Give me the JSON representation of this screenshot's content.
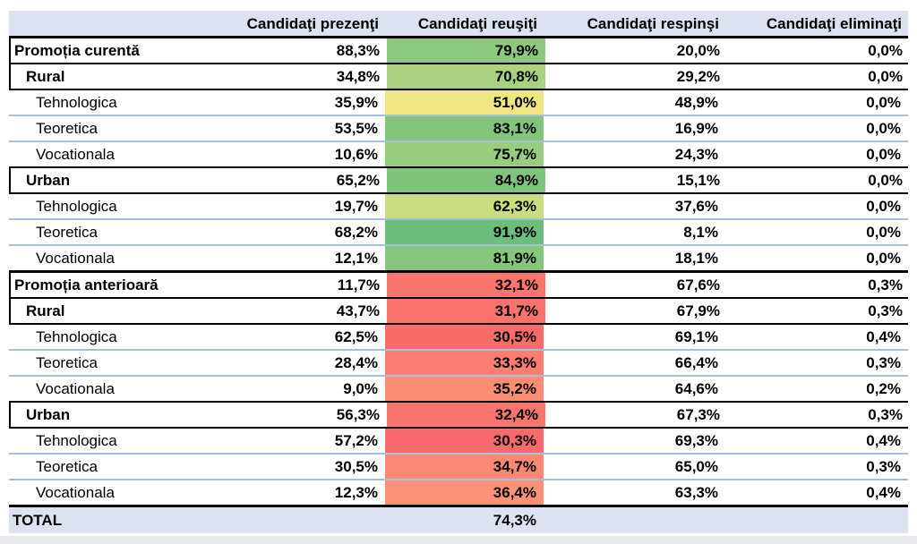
{
  "table": {
    "columns": [
      "",
      "Candidaţi prezenţi",
      "Candidaţi reuşiţi",
      "Candidaţi respinşi",
      "Candidaţi eliminaţi"
    ],
    "header_bg": "#DCE2F0",
    "divider_blue": "#A3C0DD",
    "rows": [
      {
        "label": "Promoția curentă",
        "indent": 0,
        "bold": true,
        "section": true,
        "total": false,
        "divider": "black",
        "prezenti": "88,3%",
        "reusiti": "79,9%",
        "reusiti_bg": "#8CC87E",
        "respinsi": "20,0%",
        "eliminati": "0,0%"
      },
      {
        "label": "Rural",
        "indent": 1,
        "bold": true,
        "section": true,
        "total": false,
        "divider": "black",
        "prezenti": "34,8%",
        "reusiti": "70,8%",
        "reusiti_bg": "#A8D27F",
        "respinsi": "29,2%",
        "eliminati": "0,0%"
      },
      {
        "label": "Tehnologica",
        "indent": 2,
        "bold": false,
        "section": false,
        "total": false,
        "divider": "blue",
        "prezenti": "35,9%",
        "reusiti": "51,0%",
        "reusiti_bg": "#EFE683",
        "respinsi": "48,9%",
        "eliminati": "0,0%"
      },
      {
        "label": "Teoretica",
        "indent": 2,
        "bold": false,
        "section": false,
        "total": false,
        "divider": "blue",
        "prezenti": "53,5%",
        "reusiti": "83,1%",
        "reusiti_bg": "#84C57D",
        "respinsi": "16,9%",
        "eliminati": "0,0%"
      },
      {
        "label": "Vocationala",
        "indent": 2,
        "bold": false,
        "section": false,
        "total": false,
        "divider": "black",
        "prezenti": "10,6%",
        "reusiti": "75,7%",
        "reusiti_bg": "#98CD7E",
        "respinsi": "24,3%",
        "eliminati": "0,0%"
      },
      {
        "label": "Urban",
        "indent": 1,
        "bold": true,
        "section": true,
        "total": false,
        "divider": "black",
        "prezenti": "65,2%",
        "reusiti": "84,9%",
        "reusiti_bg": "#7FC47C",
        "respinsi": "15,1%",
        "eliminati": "0,0%"
      },
      {
        "label": "Tehnologica",
        "indent": 2,
        "bold": false,
        "section": false,
        "total": false,
        "divider": "blue",
        "prezenti": "19,7%",
        "reusiti": "62,3%",
        "reusiti_bg": "#C9DE81",
        "respinsi": "37,6%",
        "eliminati": "0,0%"
      },
      {
        "label": "Teoretica",
        "indent": 2,
        "bold": false,
        "section": false,
        "total": false,
        "divider": "blue",
        "prezenti": "68,2%",
        "reusiti": "91,9%",
        "reusiti_bg": "#6CBE7B",
        "respinsi": "8,1%",
        "eliminati": "0,0%"
      },
      {
        "label": "Vocationala",
        "indent": 2,
        "bold": false,
        "section": false,
        "total": false,
        "divider": "thick",
        "prezenti": "12,1%",
        "reusiti": "81,9%",
        "reusiti_bg": "#87C77D",
        "respinsi": "18,1%",
        "eliminati": "0,0%"
      },
      {
        "label": "Promoția anterioară",
        "indent": 0,
        "bold": true,
        "section": true,
        "total": false,
        "divider": "black",
        "prezenti": "11,7%",
        "reusiti": "32,1%",
        "reusiti_bg": "#F9756E",
        "respinsi": "67,6%",
        "eliminati": "0,3%"
      },
      {
        "label": "Rural",
        "indent": 1,
        "bold": true,
        "section": true,
        "total": false,
        "divider": "black",
        "prezenti": "43,7%",
        "reusiti": "31,7%",
        "reusiti_bg": "#F9736D",
        "respinsi": "67,9%",
        "eliminati": "0,3%"
      },
      {
        "label": "Tehnologica",
        "indent": 2,
        "bold": false,
        "section": false,
        "total": false,
        "divider": "blue",
        "prezenti": "62,5%",
        "reusiti": "30,5%",
        "reusiti_bg": "#F86C6B",
        "respinsi": "69,1%",
        "eliminati": "0,4%"
      },
      {
        "label": "Teoretica",
        "indent": 2,
        "bold": false,
        "section": false,
        "total": false,
        "divider": "blue",
        "prezenti": "28,4%",
        "reusiti": "33,3%",
        "reusiti_bg": "#FA7E71",
        "respinsi": "66,4%",
        "eliminati": "0,3%"
      },
      {
        "label": "Vocationala",
        "indent": 2,
        "bold": false,
        "section": false,
        "total": false,
        "divider": "black",
        "prezenti": "9,0%",
        "reusiti": "35,2%",
        "reusiti_bg": "#FB8D75",
        "respinsi": "64,6%",
        "eliminati": "0,2%"
      },
      {
        "label": "Urban",
        "indent": 1,
        "bold": true,
        "section": true,
        "total": false,
        "divider": "black",
        "prezenti": "56,3%",
        "reusiti": "32,4%",
        "reusiti_bg": "#F9766F",
        "respinsi": "67,3%",
        "eliminati": "0,3%"
      },
      {
        "label": "Tehnologica",
        "indent": 2,
        "bold": false,
        "section": false,
        "total": false,
        "divider": "blue",
        "prezenti": "57,2%",
        "reusiti": "30,3%",
        "reusiti_bg": "#F86A6B",
        "respinsi": "69,3%",
        "eliminati": "0,4%"
      },
      {
        "label": "Teoretica",
        "indent": 2,
        "bold": false,
        "section": false,
        "total": false,
        "divider": "blue",
        "prezenti": "30,5%",
        "reusiti": "34,7%",
        "reusiti_bg": "#FA8873",
        "respinsi": "65,0%",
        "eliminati": "0,3%"
      },
      {
        "label": "Vocationala",
        "indent": 2,
        "bold": false,
        "section": false,
        "total": false,
        "divider": "thick",
        "prezenti": "12,3%",
        "reusiti": "36,4%",
        "reusiti_bg": "#FB9276",
        "respinsi": "63,3%",
        "eliminati": "0,4%"
      },
      {
        "label": "TOTAL",
        "indent": 0,
        "bold": true,
        "section": false,
        "total": true,
        "divider": "none",
        "prezenti": "",
        "reusiti": "74,3%",
        "reusiti_bg": "",
        "respinsi": "",
        "eliminati": ""
      }
    ]
  },
  "chart_data": {
    "type": "table",
    "title": "",
    "columns": [
      "Candidaţi prezenţi",
      "Candidaţi reuşiţi",
      "Candidaţi respinşi",
      "Candidaţi eliminaţi"
    ],
    "rows": [
      {
        "label": "Promoția curentă",
        "group_level": 0,
        "values": [
          88.3,
          79.9,
          20.0,
          0.0
        ]
      },
      {
        "label": "Rural",
        "group_level": 1,
        "values": [
          34.8,
          70.8,
          29.2,
          0.0
        ]
      },
      {
        "label": "Tehnologica",
        "group_level": 2,
        "values": [
          35.9,
          51.0,
          48.9,
          0.0
        ]
      },
      {
        "label": "Teoretica",
        "group_level": 2,
        "values": [
          53.5,
          83.1,
          16.9,
          0.0
        ]
      },
      {
        "label": "Vocationala",
        "group_level": 2,
        "values": [
          10.6,
          75.7,
          24.3,
          0.0
        ]
      },
      {
        "label": "Urban",
        "group_level": 1,
        "values": [
          65.2,
          84.9,
          15.1,
          0.0
        ]
      },
      {
        "label": "Tehnologica",
        "group_level": 2,
        "values": [
          19.7,
          62.3,
          37.6,
          0.0
        ]
      },
      {
        "label": "Teoretica",
        "group_level": 2,
        "values": [
          68.2,
          91.9,
          8.1,
          0.0
        ]
      },
      {
        "label": "Vocationala",
        "group_level": 2,
        "values": [
          12.1,
          81.9,
          18.1,
          0.0
        ]
      },
      {
        "label": "Promoția anterioară",
        "group_level": 0,
        "values": [
          11.7,
          32.1,
          67.6,
          0.3
        ]
      },
      {
        "label": "Rural",
        "group_level": 1,
        "values": [
          43.7,
          31.7,
          67.9,
          0.3
        ]
      },
      {
        "label": "Tehnologica",
        "group_level": 2,
        "values": [
          62.5,
          30.5,
          69.1,
          0.4
        ]
      },
      {
        "label": "Teoretica",
        "group_level": 2,
        "values": [
          28.4,
          33.3,
          66.4,
          0.3
        ]
      },
      {
        "label": "Vocationala",
        "group_level": 2,
        "values": [
          9.0,
          35.2,
          64.6,
          0.2
        ]
      },
      {
        "label": "Urban",
        "group_level": 1,
        "values": [
          56.3,
          32.4,
          67.3,
          0.3
        ]
      },
      {
        "label": "Tehnologica",
        "group_level": 2,
        "values": [
          57.2,
          30.3,
          69.3,
          0.4
        ]
      },
      {
        "label": "Teoretica",
        "group_level": 2,
        "values": [
          30.5,
          34.7,
          65.0,
          0.3
        ]
      },
      {
        "label": "Vocationala",
        "group_level": 2,
        "values": [
          12.3,
          36.4,
          63.3,
          0.4
        ]
      },
      {
        "label": "TOTAL",
        "group_level": 0,
        "values": [
          null,
          74.3,
          null,
          null
        ]
      }
    ],
    "units": "%",
    "heatmap_column": "Candidaţi reuşiţi",
    "color_scale": {
      "min": {
        "value": 30.3,
        "color": "#F8696B"
      },
      "mid": {
        "value": 51.0,
        "color": "#FFEB84"
      },
      "max": {
        "value": 91.9,
        "color": "#63BE7B"
      }
    },
    "legend_position": "none",
    "grid": "row-dividers"
  }
}
